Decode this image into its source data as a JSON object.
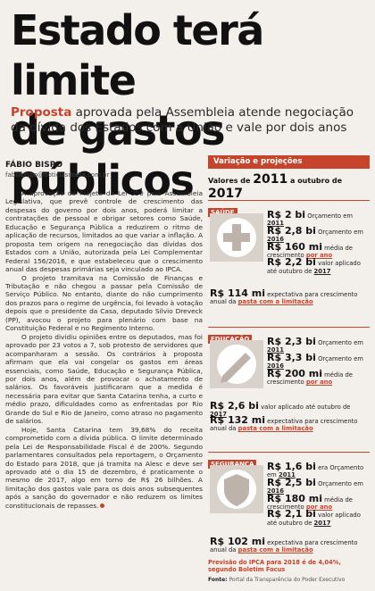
{
  "headline": {
    "line1": "Estado terá limite",
    "line2": "de gastos públicos"
  },
  "deck": {
    "kicker": "Proposta",
    "text": " aprovada pela Assembleia atende negociação da dívida dos Estados com a União e vale por dois anos"
  },
  "author": {
    "name": "FÁBIO BISPO",
    "email": "fabiobispo@noticiasdodia.com.br"
  },
  "body": [
    "A aprovação do Projeto de Lei 350 pela Assembleia Legislativa, que prevê controle de crescimento das despesas do governo por dois anos, poderá limitar a contratações de pessoal e obrigar setores como Saúde, Educação e Segurança Pública a reduzirem o ritmo de aplicação de recursos, limitados ao que variar a inflação. A proposta tem origem na renegociação das dívidas dos Estados com a União, autorizada pela Lei Complementar Federal 156/2016, e que estabeleceu que o crescimento anual das despesas primárias seja vinculado ao IPCA.",
    "O projeto tramitava na Comissão de Finanças e Tributação e não chegou a passar pela Comissão de Serviço Público. No entanto, diante do não cumprimento dos prazos para o regime de urgência, foi levado à votação depois que o presidente da Casa, deputado Silvio Dreveck (PP), avocou o projeto para plenário com base na Constituição Federal e no Regimento Interno.",
    "O projeto dividiu opiniões entre os deputados, mas foi aprovado por 23 votos a 7, sob protesto de servidores que acompanharam a sessão. Os contrários à proposta afirmam que ela vai congelar os gastos em áreas essenciais, como Saúde, Educação e Segurança Pública, por dois anos, além de provocar o achatamento de salários. Os favoráveis justificaram que a medida é necessária para evitar que Santa Catarina tenha, a curto e médio prazo, dificuldades como as enfrentadas por Rio Grande do Sul e Rio de Janeiro, como atraso no pagamento de salários.",
    "Hoje, Santa Catarina tem 39,68% do receita comprometido com a dívida pública. O limite determinado pela Lei de Responsabilidade Fiscal é de 200%. Segundo parlamentares consultados pela reportagem, o Orçamento do Estado para 2018, que já tramita na Alesc e deve ser aprovado até o dia 15 de dezembro, é praticamente o mesmo de 2017, algo em torno de R$ 26 bilhões. A limitação dos gastos vale para os dois anos subsequentes após a sanção do governador e não reduzem os limites constitucionais de repasses."
  ],
  "rail": {
    "header": "Variação e projeções",
    "sub_pre": "Valores de ",
    "sub_y1": "2011",
    "sub_mid": " a outubro de ",
    "sub_y2": "2017"
  },
  "saude": {
    "tag": "SAÚDE",
    "r1v": "R$ 2 bi",
    "r1t": " Orçamento em ",
    "r1y": "2011",
    "r2v": "R$ 2,8 bi",
    "r2t": " Orçamento em ",
    "r2y": "2016",
    "r3v": "R$ 160 mi",
    "r3t": " média de crescimento ",
    "r3y": "por ano",
    "r4v": "R$ 2,2 bi",
    "r4t": " valor aplicado até outubro de ",
    "r4y": "2017",
    "r5v": "R$ 114 mi",
    "r5t": " expectativa para crescimento anual da ",
    "r5y": "pasta com a limitação"
  },
  "educacao": {
    "tag": "EDUCAÇÃO",
    "r1v": "R$ 2,3 bi",
    "r1t": " Orçamento em ",
    "r1y": "2011",
    "r2v": "R$ 3,3 bi",
    "r2t": " Orçamento em ",
    "r2y": "2016",
    "r3v": "R$ 200 mi",
    "r3t": " média de crescimento ",
    "r3y": "por ano",
    "r4v": "R$ 2,6 bi",
    "r4t": " valor aplicado até outubro de ",
    "r4y": "2017",
    "r5v": "R$ 132 mi",
    "r5t": " expectativa para crescimento anual da ",
    "r5y": "pasta com a limitação"
  },
  "seguranca": {
    "tag": "SEGURANÇA",
    "r1v": "R$ 1,6 bi",
    "r1t": " era Orçamento em ",
    "r1y": "2011",
    "r2v": "R$ 2,5 bi",
    "r2t": " Orçamento em ",
    "r2y": "2016",
    "r3v": "R$ 180 mi",
    "r3t": " média de crescimento ",
    "r3y": "por ano",
    "r4v": "R$ 2,1 bi",
    "r4t": " valor aplicado até outubro de ",
    "r4y": "2017",
    "r5v": "R$ 102 mi",
    "r5t": " expectativa para crescimento anual da ",
    "r5y": "pasta com a limitação"
  },
  "footnote": "Previsão do IPCA para 2018 é de 4,04%, segundo Boletim Focus",
  "source": {
    "label": "Fonte:",
    "text": " Portal da Transparência do Poder Executivo"
  },
  "colors": {
    "accent": "#c6432c",
    "paper": "#f3f0ec"
  },
  "icons": {
    "saude": "medical-cross-icon",
    "educacao": "pencil-icon",
    "seguranca": "badge-shield-icon"
  }
}
